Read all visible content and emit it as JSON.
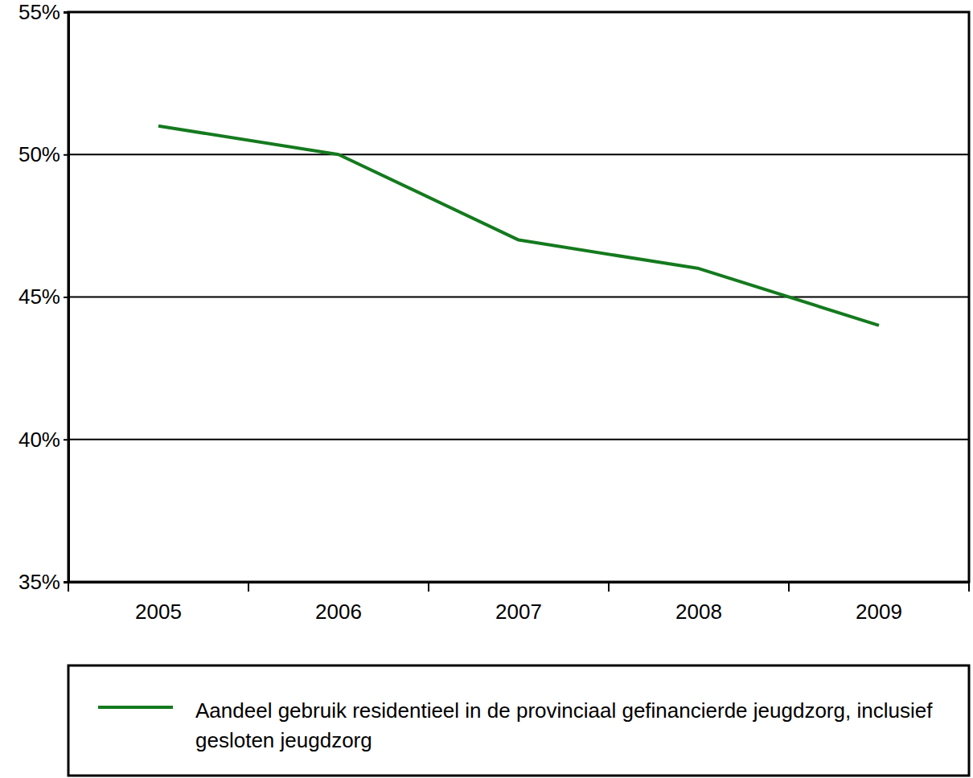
{
  "chart_data": {
    "type": "line",
    "categories": [
      "2005",
      "2006",
      "2007",
      "2008",
      "2009"
    ],
    "series": [
      {
        "name": "Aandeel gebruik residentieel in de provinciaal gefinancierde jeugdzorg, inclusief gesloten jeugdzorg",
        "color": "#147a1e",
        "values": [
          51,
          50,
          47,
          46,
          44
        ]
      }
    ],
    "ylim": [
      35,
      55
    ],
    "yticks": [
      {
        "value": 35,
        "label": "35%"
      },
      {
        "value": 40,
        "label": "40%"
      },
      {
        "value": 45,
        "label": "45%"
      },
      {
        "value": 50,
        "label": "50%"
      },
      {
        "value": 55,
        "label": "55%"
      }
    ],
    "grid": true,
    "legend": "bottom"
  }
}
